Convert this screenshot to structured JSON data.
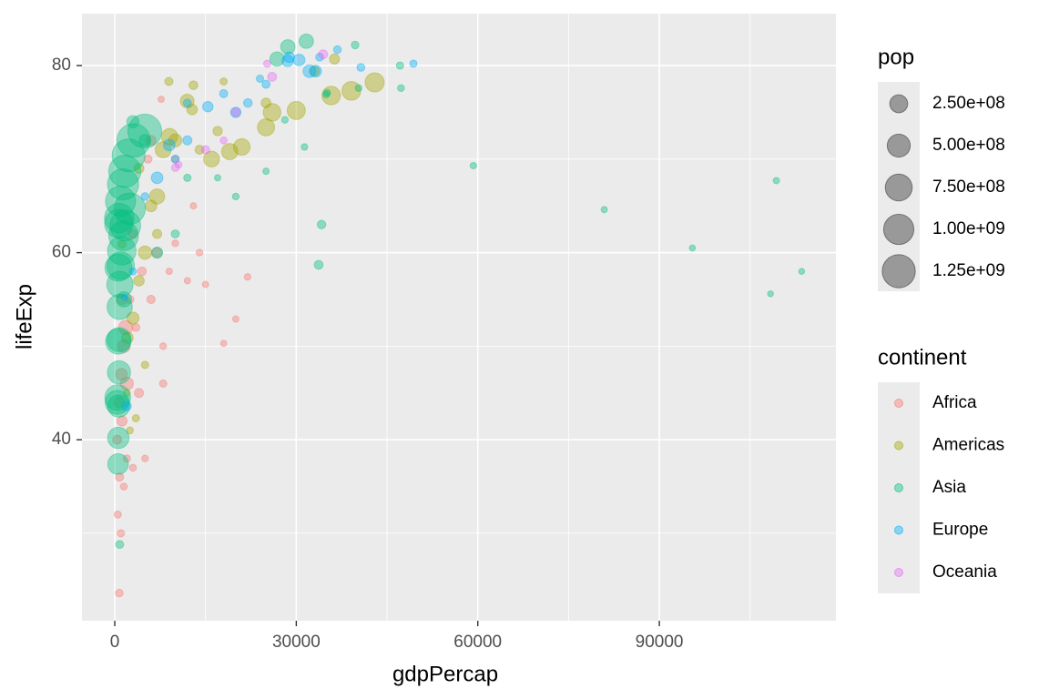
{
  "chart_data": {
    "type": "scatter",
    "x_label": "gdpPercap",
    "y_label": "lifeExp",
    "xlim": [
      -5423,
      119187
    ],
    "ylim": [
      20.65,
      85.55
    ],
    "xticks": [
      0,
      30000,
      60000,
      90000
    ],
    "yticks": [
      40,
      60,
      80
    ],
    "xminor": [
      15000,
      45000,
      75000,
      105000
    ],
    "yminor": [
      30,
      50,
      70
    ],
    "grid": true,
    "opacity": 0.4,
    "size_title": "pop",
    "size_lim": [
      60011,
      1318683096
    ],
    "size_legend": [
      {
        "value": 250000000,
        "label": "2.50e+08"
      },
      {
        "value": 500000000,
        "label": "5.00e+08"
      },
      {
        "value": 750000000,
        "label": "7.50e+08"
      },
      {
        "value": 1000000000,
        "label": "1.00e+09"
      },
      {
        "value": 1250000000,
        "label": "1.25e+09"
      }
    ],
    "legend_title": "continent",
    "legend_position": "right",
    "series": [
      {
        "name": "Africa",
        "color": "#F8766D",
        "x": [
          737,
          1000,
          500,
          1500,
          800,
          2000,
          3000,
          5000,
          400,
          1200,
          700,
          1100,
          1500,
          2000,
          1800,
          2500,
          3500,
          4500,
          6000,
          8000,
          9000,
          10000,
          12000,
          13000,
          14000,
          15000,
          18000,
          20000,
          21951,
          8000,
          1200,
          4000,
          7000,
          7670,
          6000,
          5500,
          3000,
          10000
        ],
        "values": [
          23.6,
          30,
          32,
          35,
          36,
          38,
          37,
          38,
          40,
          42,
          44,
          47,
          50,
          46,
          52,
          55,
          52,
          58,
          55,
          50,
          58,
          61,
          57,
          65,
          60,
          56.6,
          50.3,
          52.9,
          57.4,
          46,
          55,
          45,
          60,
          76.4,
          72,
          70,
          62,
          70
        ],
        "sizes": [
          7290203,
          5000000,
          4000000,
          3000000,
          10000000,
          4000000,
          3000000,
          2000000,
          20000000,
          33000000,
          40000000,
          60000000,
          80000000,
          90000000,
          120000000,
          10000000,
          8000000,
          15000000,
          12000000,
          2000000,
          1000000,
          2000000,
          1000000,
          1000000,
          2000000,
          1000000,
          500000,
          1000000,
          2000000,
          5000000,
          40000000,
          20000000,
          30000000,
          800000,
          30000000,
          10000000,
          20000000,
          5000000
        ]
      },
      {
        "name": "Americas",
        "color": "#A3A500",
        "x": [
          42952,
          39097,
          35767,
          30000,
          26000,
          25000,
          21000,
          19000,
          16000,
          36319,
          33000,
          25000,
          17000,
          14000,
          9066,
          8000,
          7000,
          5000,
          3000,
          2100,
          11977,
          10000,
          6000,
          4000,
          12779,
          13000,
          2000,
          1201,
          2500,
          3500,
          5000,
          7000,
          18000,
          4000,
          8948
        ],
        "values": [
          78.2,
          77.3,
          76.8,
          75.2,
          75,
          73.4,
          71.3,
          70.8,
          70,
          80.7,
          79.4,
          76,
          73,
          71,
          72.4,
          71,
          66,
          60,
          53,
          50.9,
          76.2,
          72,
          65,
          57,
          75.3,
          77.9,
          45,
          60.9,
          41,
          42.3,
          48,
          62,
          78.3,
          69,
          78.3
        ],
        "sizes": [
          301000000,
          287000000,
          272000000,
          258000000,
          240000000,
          220000000,
          198000000,
          186000000,
          171000000,
          33000000,
          31000000,
          28000000,
          22000000,
          17000000,
          190000000,
          175000000,
          150000000,
          100000000,
          70000000,
          56000000,
          108000000,
          90000000,
          60000000,
          40000000,
          40000000,
          16000000,
          3000000,
          8500000,
          3000000,
          4000000,
          5000000,
          20000000,
          4000000,
          30000000,
          11000000
        ]
      },
      {
        "name": "Asia",
        "color": "#00BF7D",
        "x": [
          400,
          575,
          487,
          613,
          677,
          741,
          962,
          1378,
          1656,
          2289,
          3119,
          4959,
          547,
          590,
          658,
          700,
          724,
          813,
          856,
          977,
          1164,
          1459,
          1747,
          2452,
          108382,
          113523,
          95458,
          80895,
          109348,
          59265,
          31354,
          28118,
          34932,
          40301,
          35110,
          47307,
          34168,
          33693,
          31656,
          28604,
          26824,
          1500,
          820,
          47143,
          39725,
          3000,
          5000,
          10000,
          12000,
          20000,
          25000,
          17000,
          7000
        ],
        "values": [
          44,
          50.5,
          44.5,
          58.4,
          63.1,
          63.7,
          65.5,
          67.3,
          68.7,
          70.4,
          72,
          73,
          37.4,
          40.2,
          43.6,
          47.2,
          50.7,
          54.2,
          56.6,
          58.6,
          60.2,
          61.8,
          62.9,
          64.7,
          55.6,
          58,
          60.5,
          64.6,
          67.7,
          69.3,
          71.3,
          74.2,
          76.9,
          77.6,
          77.1,
          77.6,
          63,
          58.7,
          82.6,
          82,
          80.7,
          55,
          28.8,
          80,
          82.2,
          74,
          72,
          62,
          68,
          66,
          68.7,
          68,
          60
        ],
        "sizes": [
          556000000,
          637000000,
          665000000,
          754000000,
          862000000,
          943000000,
          1000000000,
          1084000000,
          1165000000,
          1230000000,
          1280000000,
          1318683096,
          372000000,
          409000000,
          454000000,
          506000000,
          567000000,
          634000000,
          708000000,
          788000000,
          872000000,
          959000000,
          1034000000,
          1110000000,
          160000,
          210000,
          360000,
          580000,
          900000,
          1100000,
          1500000,
          1900000,
          1800000,
          2200000,
          2400000,
          2500000,
          14000000,
          16000000,
          127000000,
          127000000,
          125000000,
          150000000,
          8400000,
          4500000,
          6980000,
          70000000,
          60000000,
          10000000,
          5000000,
          2000000,
          1000000,
          800000,
          50000000
        ]
      },
      {
        "name": "Europe",
        "color": "#00B0F6",
        "x": [
          49357,
          40675,
          33203,
          30470,
          32170,
          28570,
          28821,
          36797,
          33860,
          25000,
          20000,
          15389,
          12000,
          10000,
          7000,
          9000,
          5000,
          3000,
          1601,
          1969,
          12000,
          18000,
          22000,
          24000
        ],
        "values": [
          80.2,
          79.8,
          79.4,
          80.6,
          79.4,
          80.5,
          80.9,
          81.7,
          80.9,
          78,
          75,
          75.6,
          72,
          70,
          68,
          71.5,
          66,
          58,
          55.2,
          43.6,
          76,
          77,
          76,
          78.6
        ],
        "sizes": [
          4600000,
          8200000,
          60000000,
          61000000,
          82000000,
          58000000,
          40000000,
          7500000,
          9000000,
          10000000,
          38000000,
          38000000,
          20000000,
          10000000,
          60000000,
          60000000,
          8000000,
          4000000,
          1300000,
          22000000,
          9000000,
          10000000,
          15000000,
          5000000
        ]
      },
      {
        "name": "Oceania",
        "color": "#E76BF3",
        "x": [
          10040,
          15000,
          20000,
          26000,
          34435,
          10557,
          18000,
          25185
        ],
        "values": [
          69.1,
          71,
          75,
          78.8,
          81.2,
          69.4,
          72,
          80.2
        ],
        "sizes": [
          8700000,
          12000000,
          16000000,
          18000000,
          20000000,
          1990000,
          3000000,
          4100000
        ]
      }
    ]
  }
}
